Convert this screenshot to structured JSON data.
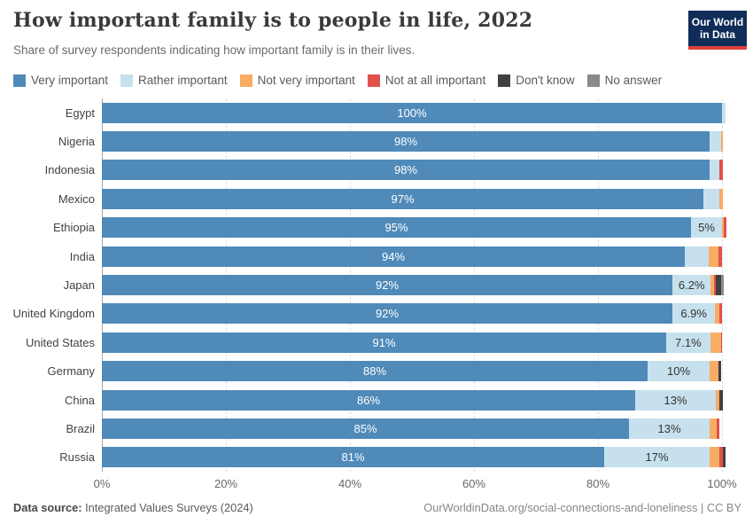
{
  "header": {
    "title": "How important family is to people in life, 2022",
    "subtitle": "Share of survey respondents indicating how important family is in their lives.",
    "logo": {
      "line1": "Our World",
      "line2": "in Data",
      "bg": "#102D59",
      "accent": "#E0403A"
    }
  },
  "chart_data": {
    "type": "bar",
    "stacked": true,
    "horizontal": true,
    "title": "How important family is to people in life, 2022",
    "subtitle": "Share of survey respondents indicating how important family is in their lives.",
    "xlim": [
      0,
      100
    ],
    "x_ticks": [
      "0%",
      "20%",
      "40%",
      "60%",
      "80%",
      "100%"
    ],
    "grid": "dashed-vertical",
    "legend_position": "top",
    "categories": [
      "Egypt",
      "Nigeria",
      "Indonesia",
      "Mexico",
      "Ethiopia",
      "India",
      "Japan",
      "United Kingdom",
      "United States",
      "Germany",
      "China",
      "Brazil",
      "Russia"
    ],
    "series": [
      {
        "name": "Very important",
        "color": "#4F8AB9",
        "values": [
          100,
          98,
          98,
          97,
          95,
          94,
          92,
          92,
          91,
          88,
          86,
          85,
          81
        ],
        "labels": [
          "100%",
          "98%",
          "98%",
          "97%",
          "95%",
          "94%",
          "92%",
          "92%",
          "91%",
          "88%",
          "86%",
          "85%",
          "81%"
        ]
      },
      {
        "name": "Rather important",
        "color": "#C6E1ED",
        "values": [
          0.5,
          1.8,
          1.5,
          2.5,
          5,
          3.8,
          6.2,
          6.9,
          7.1,
          10,
          13,
          13,
          17
        ],
        "labels": [
          "",
          "",
          "",
          "",
          "5%",
          "",
          "6.2%",
          "6.9%",
          "7.1%",
          "10%",
          "13%",
          "13%",
          "17%"
        ]
      },
      {
        "name": "Not very important",
        "color": "#F8AC64",
        "values": [
          0,
          0.4,
          0,
          0.6,
          0.3,
          1.6,
          0.5,
          0.7,
          1.7,
          1.4,
          0.5,
          1.1,
          1.6
        ],
        "labels": [
          "",
          "",
          "",
          "",
          "",
          "",
          "",
          "",
          "",
          "",
          "",
          "",
          ""
        ]
      },
      {
        "name": "Not at all important",
        "color": "#E2504B",
        "values": [
          0,
          0,
          0.7,
          0,
          0.4,
          0.6,
          0.3,
          0.4,
          0.2,
          0,
          0,
          0.5,
          0.5
        ],
        "labels": [
          "",
          "",
          "",
          "",
          "",
          "",
          "",
          "",
          "",
          "",
          "",
          "",
          ""
        ]
      },
      {
        "name": "Don't know",
        "color": "#404040",
        "values": [
          0,
          0,
          0,
          0,
          0,
          0,
          0.9,
          0,
          0,
          0.5,
          0.7,
          0,
          0.5
        ],
        "labels": [
          "",
          "",
          "",
          "",
          "",
          "",
          "",
          "",
          "",
          "",
          "",
          "",
          ""
        ]
      },
      {
        "name": "No answer",
        "color": "#8A8A8A",
        "values": [
          0,
          0,
          0,
          0,
          0,
          0,
          0.4,
          0,
          0,
          0,
          0,
          0,
          0
        ],
        "labels": [
          "",
          "",
          "",
          "",
          "",
          "",
          "",
          "",
          "",
          "",
          "",
          "",
          ""
        ]
      }
    ]
  },
  "footer": {
    "source_label": "Data source:",
    "source_value": "Integrated Values Surveys (2024)",
    "rights": "OurWorldinData.org/social-connections-and-loneliness | CC BY"
  }
}
